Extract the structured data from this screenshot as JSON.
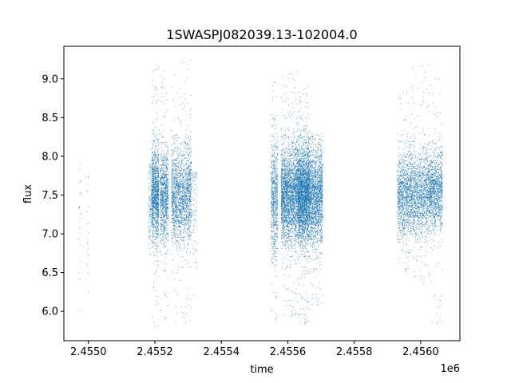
{
  "chart_data": {
    "type": "scatter",
    "title": "1SWASPJ082039.13-102004.0",
    "xlabel": "time",
    "ylabel": "flux",
    "x_offset_label": "1e6",
    "xlim": [
      2454876,
      2456068
    ],
    "ylim": [
      5.62,
      9.42
    ],
    "x_ticks": [
      2454950,
      2455150,
      2455350,
      2455550,
      2455750,
      2455950
    ],
    "x_tick_labels": [
      "2.4550",
      "2.4552",
      "2.4554",
      "2.4556",
      "2.4558",
      "2.4560"
    ],
    "y_ticks": [
      6.0,
      6.5,
      7.0,
      7.5,
      8.0,
      8.5,
      9.0
    ],
    "y_tick_labels": [
      "6.0",
      "6.5",
      "7.0",
      "7.5",
      "8.0",
      "8.5",
      "9.0"
    ],
    "grid": false,
    "legend": "none",
    "marker_color": "#1f77b4",
    "series": [
      {
        "segments": [
          {
            "x_start": 2454920,
            "x_end": 2454928,
            "n": 24,
            "median": 7.2,
            "spread": 0.5,
            "ymin": 5.95,
            "ymax": 7.9
          },
          {
            "x_start": 2454944,
            "x_end": 2454953,
            "n": 20,
            "median": 7.0,
            "spread": 0.5,
            "ymin": 5.9,
            "ymax": 7.75
          },
          {
            "x_start": 2455132,
            "x_end": 2455139,
            "n": 90,
            "median": 7.35,
            "spread": 0.35,
            "ymin": 6.7,
            "ymax": 7.9
          },
          {
            "x_start": 2455140,
            "x_end": 2455162,
            "n": 1200,
            "median": 7.5,
            "spread": 0.3,
            "ymin": 5.8,
            "ymax": 9.2
          },
          {
            "x_start": 2455166,
            "x_end": 2455190,
            "n": 900,
            "median": 7.48,
            "spread": 0.28,
            "ymin": 5.85,
            "ymax": 9.1
          },
          {
            "x_start": 2455200,
            "x_end": 2455260,
            "n": 1700,
            "median": 7.5,
            "spread": 0.3,
            "ymin": 5.8,
            "ymax": 9.25
          },
          {
            "x_start": 2455262,
            "x_end": 2455276,
            "n": 80,
            "median": 7.3,
            "spread": 0.45,
            "ymin": 6.0,
            "ymax": 7.8
          },
          {
            "x_start": 2455500,
            "x_end": 2455520,
            "n": 700,
            "median": 7.45,
            "spread": 0.38,
            "ymin": 5.85,
            "ymax": 9.05
          },
          {
            "x_start": 2455530,
            "x_end": 2455580,
            "n": 2400,
            "median": 7.5,
            "spread": 0.3,
            "ymin": 5.9,
            "ymax": 9.1
          },
          {
            "x_start": 2455580,
            "x_end": 2455615,
            "n": 2800,
            "median": 7.5,
            "spread": 0.3,
            "ymin": 5.8,
            "ymax": 8.9
          },
          {
            "x_start": 2455615,
            "x_end": 2455655,
            "n": 1700,
            "median": 7.48,
            "spread": 0.3,
            "ymin": 6.05,
            "ymax": 8.3
          },
          {
            "x_start": 2455880,
            "x_end": 2455920,
            "n": 1000,
            "median": 7.5,
            "spread": 0.28,
            "ymin": 6.5,
            "ymax": 8.9
          },
          {
            "x_start": 2455920,
            "x_end": 2455975,
            "n": 1300,
            "median": 7.52,
            "spread": 0.26,
            "ymin": 6.3,
            "ymax": 9.2
          },
          {
            "x_start": 2455975,
            "x_end": 2456016,
            "n": 1100,
            "median": 7.55,
            "spread": 0.25,
            "ymin": 5.8,
            "ymax": 9.1
          }
        ]
      }
    ]
  }
}
